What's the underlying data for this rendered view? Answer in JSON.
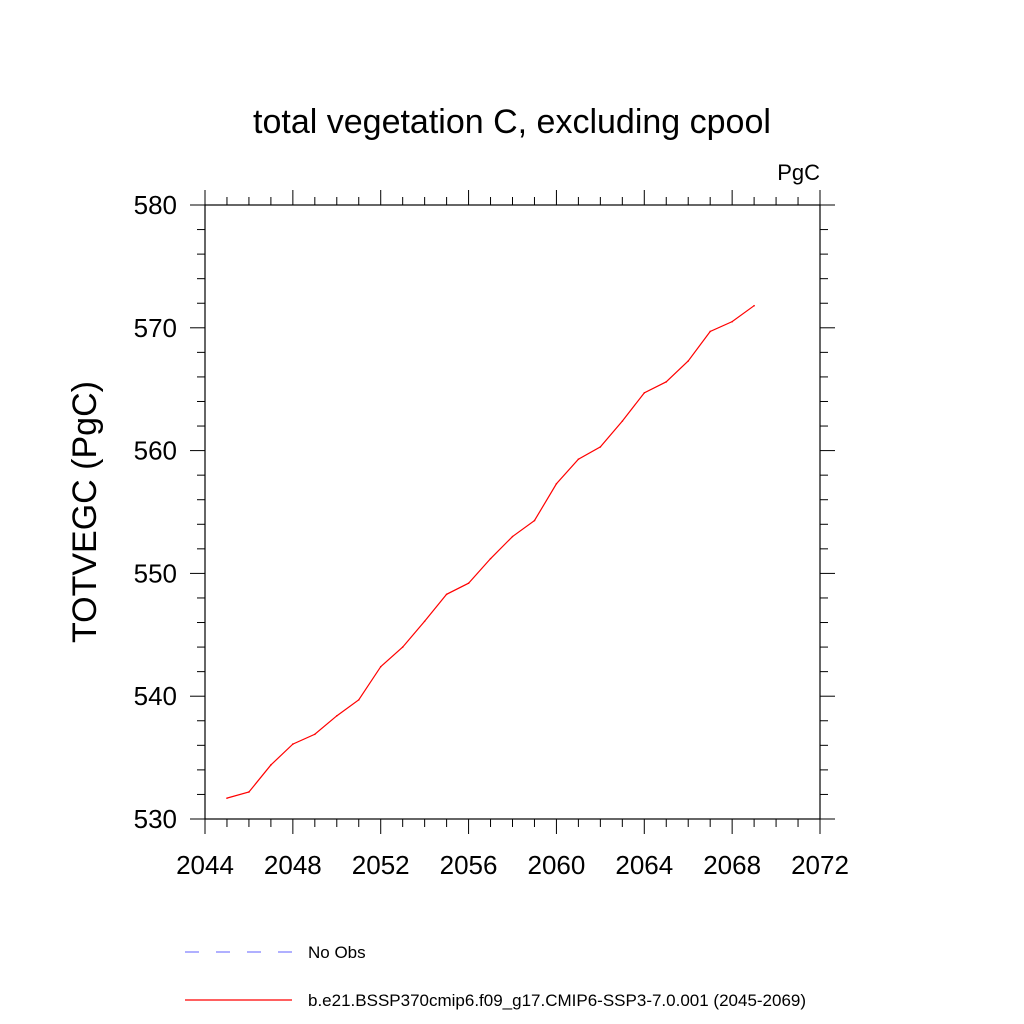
{
  "chart_data": {
    "type": "line",
    "title": "total vegetation C, excluding cpool",
    "units_label": "PgC",
    "ylabel": "TOTVEGC  (PgC)",
    "xlabel": "",
    "xlim": [
      2044,
      2072
    ],
    "ylim": [
      530,
      580
    ],
    "x_ticks": [
      "2044",
      "2048",
      "2052",
      "2056",
      "2060",
      "2064",
      "2068",
      "2072"
    ],
    "y_ticks": [
      "530",
      "540",
      "550",
      "560",
      "570",
      "580"
    ],
    "grid": false,
    "legend_position": "bottom",
    "series": [
      {
        "name": "b.e21.BSSP370cmip6.f09_g17.CMIP6-SSP3-7.0.001 (2045-2069)",
        "color": "#ff0000",
        "style": "solid",
        "x": [
          2045,
          2046,
          2047,
          2048,
          2049,
          2050,
          2051,
          2052,
          2053,
          2054,
          2055,
          2056,
          2057,
          2058,
          2059,
          2060,
          2061,
          2062,
          2063,
          2064,
          2065,
          2066,
          2067,
          2068,
          2069
        ],
        "y": [
          531.7,
          532.2,
          534.4,
          536.1,
          536.9,
          538.4,
          539.7,
          542.4,
          544.0,
          546.1,
          548.3,
          549.2,
          551.2,
          553.0,
          554.3,
          557.3,
          559.3,
          560.3,
          562.4,
          564.7,
          565.6,
          567.3,
          569.7,
          570.5,
          571.8
        ]
      },
      {
        "name": "No Obs",
        "color": "#8080ff",
        "style": "dashed",
        "x": [],
        "y": []
      }
    ]
  }
}
